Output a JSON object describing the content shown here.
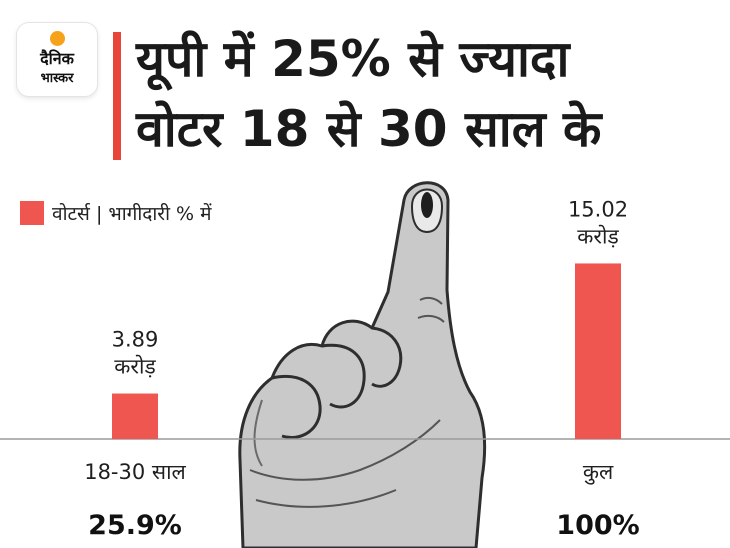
{
  "logo": {
    "line1": "दैनिक",
    "line2": "भास्कर"
  },
  "headline": {
    "line1": "यूपी में 25% से ज्यादा",
    "line2": "वोटर 18 से 30 साल के"
  },
  "colors": {
    "bar": "#ef5650",
    "accent": "#e8443a",
    "ink": "#111111"
  },
  "decor": {
    "image": "inked-index-finger-hand-sketch"
  },
  "chart_data": {
    "type": "bar",
    "categories": [
      "18-30 साल",
      "कुल"
    ],
    "series": [
      {
        "name": "वोटर्स",
        "values": [
          3.89,
          15.02
        ],
        "unit": "करोड़"
      }
    ],
    "share_labels": [
      "25.9%",
      "100%"
    ],
    "legend": "वोटर्स | भागीदारी % में",
    "legend_position": "top-left",
    "ylim": [
      0,
      16
    ],
    "grid": false,
    "baseline": true
  }
}
